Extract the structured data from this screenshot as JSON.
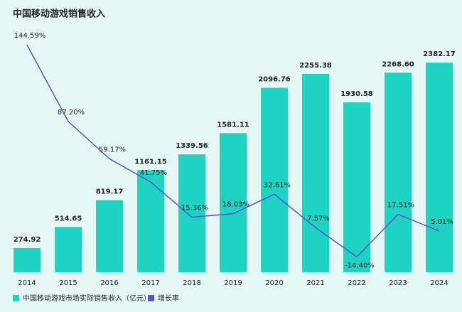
{
  "chart_data": {
    "type": "bar-line",
    "title": "中国移动游戏销售收入",
    "categories": [
      "2014",
      "2015",
      "2016",
      "2017",
      "2018",
      "2019",
      "2020",
      "2021",
      "2022",
      "2023",
      "2024"
    ],
    "series": [
      {
        "name": "中国移动游戏市场实际销售收入（亿元）",
        "type": "bar",
        "color": "#1fd3c2",
        "values": [
          274.92,
          514.65,
          819.17,
          1161.15,
          1339.56,
          1581.11,
          2096.76,
          2255.38,
          1930.58,
          2268.6,
          2382.17
        ],
        "value_labels": [
          "274.92",
          "514.65",
          "819.17",
          "1161.15",
          "1339.56",
          "1581.11",
          "2096.76",
          "2255.38",
          "1930.58",
          "2268.60",
          "2382.17"
        ]
      },
      {
        "name": "增长率",
        "type": "line",
        "axis": "y2",
        "color": "#5b4fd8",
        "values": [
          144.59,
          87.2,
          59.17,
          41.75,
          15.36,
          18.03,
          32.61,
          7.57,
          -14.4,
          17.51,
          5.01
        ],
        "value_labels": [
          "144.59%",
          "87.20%",
          "59.17%",
          "41.75%",
          "15.36%",
          "18.03%",
          "32.61%",
          "7.57%",
          "-14.40%",
          "17.51%",
          "5.01%"
        ]
      }
    ],
    "ylim": [
      0,
      2400
    ],
    "y2lim": [
      -20,
      150
    ]
  }
}
